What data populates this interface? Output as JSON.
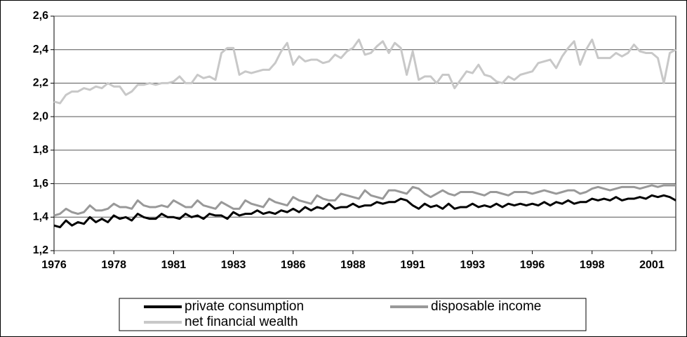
{
  "chart_data": {
    "type": "line",
    "categories": [
      "1976",
      null,
      null,
      null,
      null,
      null,
      null,
      null,
      null,
      null,
      "1978",
      null,
      null,
      null,
      null,
      null,
      null,
      null,
      null,
      null,
      "1981",
      null,
      null,
      null,
      null,
      null,
      null,
      null,
      null,
      null,
      "1983",
      null,
      null,
      null,
      null,
      null,
      null,
      null,
      null,
      null,
      "1986",
      null,
      null,
      null,
      null,
      null,
      null,
      null,
      null,
      null,
      "1988",
      null,
      null,
      null,
      null,
      null,
      null,
      null,
      null,
      null,
      "1991",
      null,
      null,
      null,
      null,
      null,
      null,
      null,
      null,
      null,
      "1993",
      null,
      null,
      null,
      null,
      null,
      null,
      null,
      null,
      null,
      "1996",
      null,
      null,
      null,
      null,
      null,
      null,
      null,
      null,
      null,
      "1998",
      null,
      null,
      null,
      null,
      null,
      null,
      null,
      null,
      null,
      "2001",
      null,
      null,
      null,
      null
    ],
    "series": [
      {
        "name": "private consumption",
        "color": "#000000",
        "values": [
          1.35,
          1.34,
          1.38,
          1.35,
          1.37,
          1.36,
          1.4,
          1.37,
          1.39,
          1.37,
          1.41,
          1.39,
          1.4,
          1.38,
          1.42,
          1.4,
          1.39,
          1.39,
          1.42,
          1.4,
          1.4,
          1.39,
          1.42,
          1.4,
          1.41,
          1.39,
          1.42,
          1.41,
          1.41,
          1.39,
          1.43,
          1.41,
          1.42,
          1.42,
          1.44,
          1.42,
          1.43,
          1.42,
          1.44,
          1.43,
          1.45,
          1.43,
          1.46,
          1.44,
          1.46,
          1.45,
          1.48,
          1.45,
          1.46,
          1.46,
          1.48,
          1.46,
          1.47,
          1.47,
          1.49,
          1.48,
          1.49,
          1.49,
          1.51,
          1.5,
          1.47,
          1.45,
          1.48,
          1.46,
          1.47,
          1.45,
          1.48,
          1.45,
          1.46,
          1.46,
          1.48,
          1.46,
          1.47,
          1.46,
          1.48,
          1.46,
          1.48,
          1.47,
          1.48,
          1.47,
          1.48,
          1.47,
          1.49,
          1.47,
          1.49,
          1.48,
          1.5,
          1.48,
          1.49,
          1.49,
          1.51,
          1.5,
          1.51,
          1.5,
          1.52,
          1.5,
          1.51,
          1.51,
          1.52,
          1.51,
          1.53,
          1.52,
          1.53,
          1.52,
          1.5
        ]
      },
      {
        "name": "disposable income",
        "color": "#999999",
        "values": [
          1.41,
          1.42,
          1.45,
          1.43,
          1.42,
          1.43,
          1.47,
          1.44,
          1.44,
          1.45,
          1.48,
          1.46,
          1.46,
          1.45,
          1.5,
          1.47,
          1.46,
          1.46,
          1.47,
          1.46,
          1.5,
          1.48,
          1.46,
          1.46,
          1.5,
          1.47,
          1.46,
          1.45,
          1.49,
          1.47,
          1.45,
          1.45,
          1.5,
          1.48,
          1.47,
          1.46,
          1.51,
          1.49,
          1.48,
          1.47,
          1.52,
          1.5,
          1.49,
          1.48,
          1.53,
          1.51,
          1.5,
          1.5,
          1.54,
          1.53,
          1.52,
          1.51,
          1.56,
          1.53,
          1.52,
          1.51,
          1.56,
          1.56,
          1.55,
          1.54,
          1.58,
          1.57,
          1.54,
          1.52,
          1.54,
          1.56,
          1.54,
          1.53,
          1.55,
          1.55,
          1.55,
          1.54,
          1.53,
          1.55,
          1.55,
          1.54,
          1.53,
          1.55,
          1.55,
          1.55,
          1.54,
          1.55,
          1.56,
          1.55,
          1.54,
          1.55,
          1.56,
          1.56,
          1.54,
          1.55,
          1.57,
          1.58,
          1.57,
          1.56,
          1.57,
          1.58,
          1.58,
          1.58,
          1.57,
          1.58,
          1.59,
          1.58,
          1.59,
          1.59,
          1.59
        ]
      },
      {
        "name": "net financial wealth",
        "color": "#c8c8c8",
        "values": [
          2.09,
          2.08,
          2.13,
          2.15,
          2.15,
          2.17,
          2.16,
          2.18,
          2.17,
          2.2,
          2.18,
          2.18,
          2.13,
          2.15,
          2.19,
          2.19,
          2.2,
          2.19,
          2.2,
          2.2,
          2.21,
          2.24,
          2.2,
          2.2,
          2.25,
          2.23,
          2.24,
          2.22,
          2.38,
          2.41,
          2.41,
          2.25,
          2.27,
          2.26,
          2.27,
          2.28,
          2.28,
          2.32,
          2.39,
          2.44,
          2.31,
          2.36,
          2.33,
          2.34,
          2.34,
          2.32,
          2.33,
          2.37,
          2.35,
          2.39,
          2.41,
          2.46,
          2.37,
          2.38,
          2.42,
          2.45,
          2.38,
          2.44,
          2.41,
          2.25,
          2.39,
          2.22,
          2.24,
          2.24,
          2.2,
          2.25,
          2.25,
          2.17,
          2.22,
          2.27,
          2.26,
          2.31,
          2.25,
          2.24,
          2.21,
          2.2,
          2.24,
          2.22,
          2.25,
          2.26,
          2.27,
          2.32,
          2.33,
          2.34,
          2.29,
          2.36,
          2.41,
          2.45,
          2.31,
          2.4,
          2.46,
          2.35,
          2.35,
          2.35,
          2.38,
          2.36,
          2.38,
          2.43,
          2.39,
          2.38,
          2.38,
          2.35,
          2.2,
          2.38,
          2.4
        ]
      }
    ],
    "ylim": [
      1.2,
      2.6
    ],
    "yticks": [
      {
        "value": 1.2,
        "label": "1,2"
      },
      {
        "value": 1.4,
        "label": "1,4"
      },
      {
        "value": 1.6,
        "label": "1,6"
      },
      {
        "value": 1.8,
        "label": "1,8"
      },
      {
        "value": 2.0,
        "label": "2,0"
      },
      {
        "value": 2.2,
        "label": "2,2"
      },
      {
        "value": 2.4,
        "label": "2,4"
      },
      {
        "value": 2.6,
        "label": "2,6"
      }
    ],
    "grid": true,
    "legend": "bottom"
  }
}
